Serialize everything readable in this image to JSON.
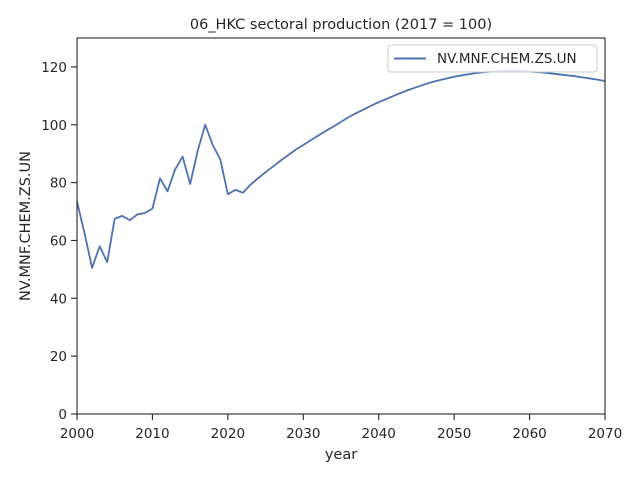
{
  "chart_data": {
    "type": "line",
    "title": "06_HKC sectoral production (2017 = 100)",
    "xlabel": "year",
    "ylabel": "NV.MNF.CHEM.ZS.UN",
    "xlim": [
      2000,
      2070
    ],
    "ylim": [
      0,
      130
    ],
    "xticks": [
      2000,
      2010,
      2020,
      2030,
      2040,
      2050,
      2060,
      2070
    ],
    "yticks": [
      0,
      20,
      40,
      60,
      80,
      100,
      120
    ],
    "grid": false,
    "legend_position": "top-right",
    "series": [
      {
        "name": "NV.MNF.CHEM.ZS.UN",
        "color": "#4c72b0",
        "x": [
          2000,
          2001,
          2002,
          2003,
          2004,
          2005,
          2006,
          2007,
          2008,
          2009,
          2010,
          2011,
          2012,
          2013,
          2014,
          2015,
          2016,
          2017,
          2018,
          2019,
          2020,
          2021,
          2022,
          2023,
          2024,
          2025,
          2026,
          2027,
          2028,
          2029,
          2030,
          2031,
          2032,
          2033,
          2034,
          2035,
          2036,
          2037,
          2038,
          2039,
          2040,
          2041,
          2042,
          2043,
          2044,
          2045,
          2046,
          2047,
          2048,
          2049,
          2050,
          2051,
          2052,
          2053,
          2054,
          2055,
          2056,
          2057,
          2058,
          2059,
          2060,
          2061,
          2062,
          2063,
          2064,
          2065,
          2066,
          2067,
          2068,
          2069,
          2070
        ],
        "y": [
          73.5,
          62.5,
          50.5,
          58.0,
          52.5,
          67.5,
          68.5,
          67.0,
          69.0,
          69.5,
          71.0,
          81.5,
          77.0,
          84.5,
          89.0,
          79.5,
          91.0,
          100.0,
          93.0,
          88.0,
          76.0,
          77.5,
          76.5,
          79.3,
          81.5,
          83.6,
          85.6,
          87.6,
          89.5,
          91.4,
          93.0,
          94.7,
          96.3,
          97.9,
          99.4,
          101.0,
          102.6,
          104.0,
          105.3,
          106.6,
          107.8,
          108.9,
          110.0,
          111.1,
          112.1,
          113.0,
          113.9,
          114.7,
          115.4,
          116.0,
          116.6,
          117.1,
          117.5,
          117.9,
          118.2,
          118.4,
          118.5,
          118.6,
          118.6,
          118.5,
          118.4,
          118.2,
          118.0,
          117.7,
          117.4,
          117.1,
          116.8,
          116.4,
          116.0,
          115.6,
          115.1
        ]
      }
    ]
  }
}
